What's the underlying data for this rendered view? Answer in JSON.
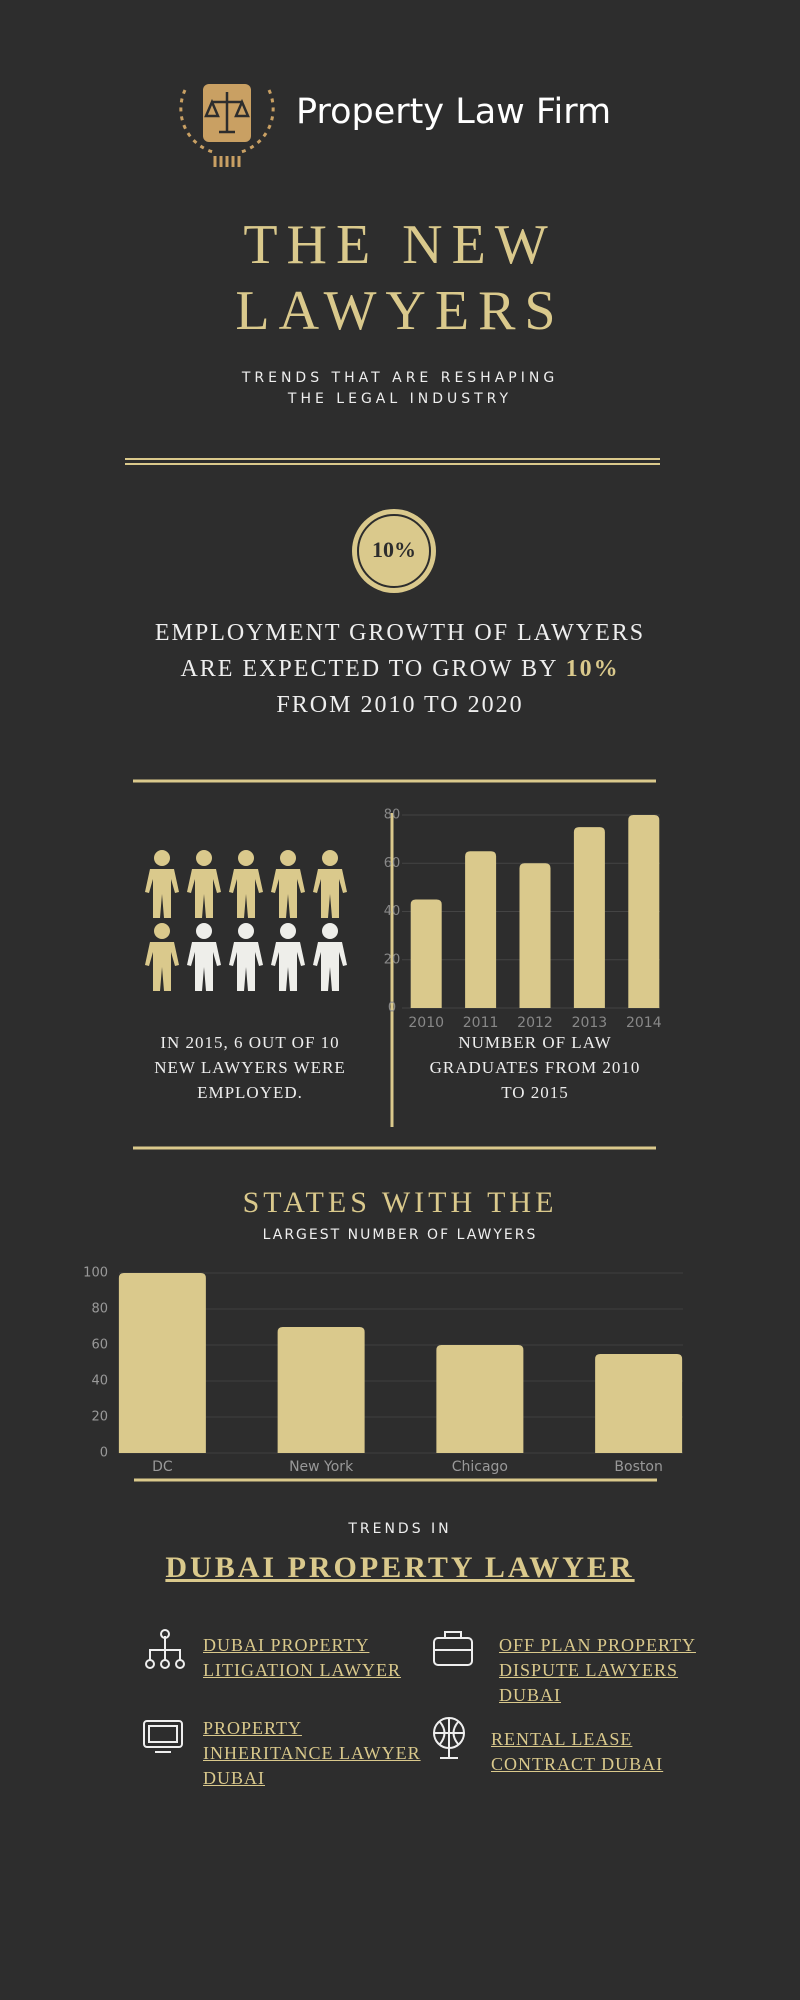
{
  "header": {
    "brand": "Property Law Firm",
    "title": "THE NEW LAWYERS",
    "subtitle": "TRENDS THAT ARE RESHAPING THE LEGAL INDUSTRY"
  },
  "stat": {
    "badge": "10%",
    "text_before": "EMPLOYMENT GROWTH OF LAWYERS ARE EXPECTED TO GROW BY",
    "text_after": "FROM 2010 TO 2020"
  },
  "people": {
    "employed": 6,
    "total": 10,
    "caption": "IN 2015, 6 OUT OF 10 NEW LAWYERS WERE EMPLOYED."
  },
  "chart_data": [
    {
      "type": "bar",
      "caption": "NUMBER OF LAW GRADUATES FROM 2010 TO 2015",
      "categories": [
        "2010",
        "2011",
        "2012",
        "2013",
        "2014"
      ],
      "values": [
        45,
        65,
        60,
        75,
        80
      ],
      "color": "#dac98c",
      "ylim": [
        0,
        80
      ],
      "yticks": [
        0,
        20,
        40,
        60,
        80
      ],
      "grid": true
    },
    {
      "type": "bar",
      "title": "STATES WITH THE",
      "subtitle": "LARGEST NUMBER OF LAWYERS",
      "categories": [
        "DC",
        "New York",
        "Chicago",
        "Boston"
      ],
      "values": [
        100,
        70,
        60,
        55
      ],
      "color": "#dac98c",
      "ylim": [
        0,
        100
      ],
      "yticks": [
        0,
        20,
        40,
        60,
        80,
        100
      ],
      "grid": true
    }
  ],
  "trends": {
    "label": "TRENDS IN",
    "title": "DUBAI PROPERTY LAWYER",
    "links": [
      "DUBAI PROPERTY LITIGATION LAWYER",
      "OFF PLAN PROPERTY DISPUTE LAWYERS DUBAI",
      "PROPERTY INHERITANCE LAWYER DUBAI",
      "RENTAL LEASE CONTRACT DUBAI"
    ]
  }
}
